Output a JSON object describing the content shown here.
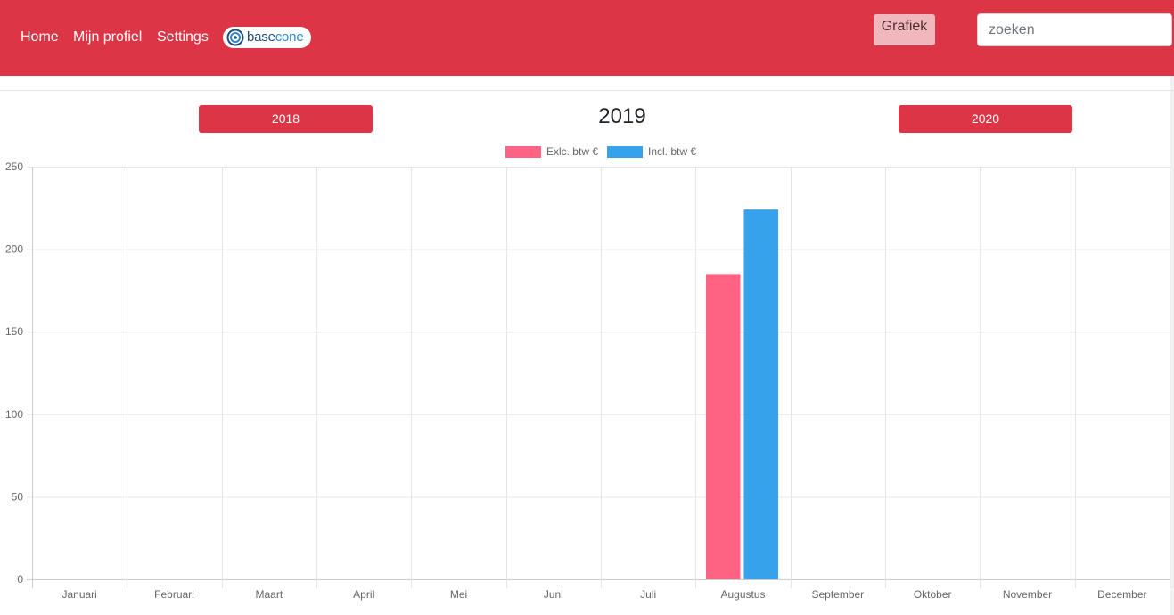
{
  "nav": {
    "home": "Home",
    "profile": "Mijn profiel",
    "settings": "Settings",
    "logo_left": "base",
    "logo_right": "cone",
    "grafiek": "Grafiek",
    "search_placeholder": "zoeken"
  },
  "years": {
    "prev": "2018",
    "current": "2019",
    "next": "2020"
  },
  "chart_data": {
    "type": "bar",
    "categories": [
      "Januari",
      "Februari",
      "Maart",
      "April",
      "Mei",
      "Juni",
      "Juli",
      "Augustus",
      "September",
      "Oktober",
      "November",
      "December"
    ],
    "series": [
      {
        "name": "Exlc. btw €",
        "color": "#ff6384",
        "values": [
          0,
          0,
          0,
          0,
          0,
          0,
          0,
          185,
          0,
          0,
          0,
          0
        ]
      },
      {
        "name": "Incl. btw €",
        "color": "#36a2eb",
        "values": [
          0,
          0,
          0,
          0,
          0,
          0,
          0,
          224,
          0,
          0,
          0,
          0
        ]
      }
    ],
    "ylim": [
      0,
      250
    ],
    "yticks": [
      0,
      50,
      100,
      150,
      200,
      250
    ],
    "grid": true,
    "legend": "top"
  }
}
